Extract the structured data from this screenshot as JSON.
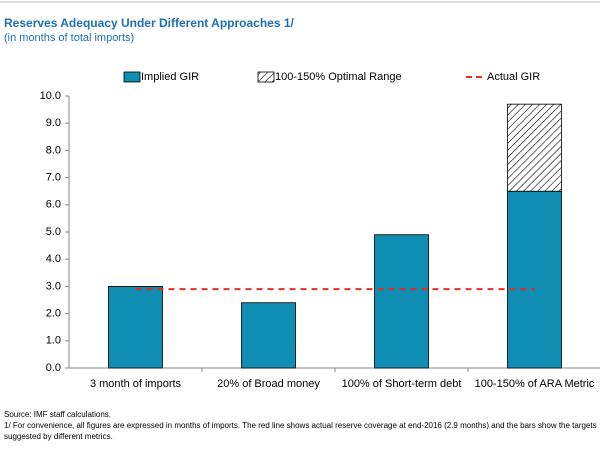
{
  "chart_data": {
    "type": "bar",
    "title": "Reserves Adequacy Under Different Approaches 1/",
    "subtitle": "(in months of total imports)",
    "categories": [
      "3 month of imports",
      "20% of Broad money",
      "100% of Short-term debt",
      "100-150% of ARA Metric"
    ],
    "series": [
      {
        "name": "Implied GIR",
        "color": "#0f8db3",
        "type": "bar",
        "values": [
          3.0,
          2.4,
          4.9,
          6.5
        ]
      },
      {
        "name": "100-150% Optimal Range",
        "color": "#000000",
        "type": "bar",
        "pattern": "hatch",
        "values": [
          null,
          null,
          null,
          3.2
        ]
      },
      {
        "name": "Actual GIR",
        "color": "#e0302a",
        "type": "line",
        "dashed": true,
        "values": [
          2.9,
          2.9,
          2.9,
          2.9
        ]
      }
    ],
    "stacked": true,
    "ylim": [
      0,
      10
    ],
    "yticks": [
      {
        "value": 0,
        "label": "0.0"
      },
      {
        "value": 1,
        "label": "1.0"
      },
      {
        "value": 2,
        "label": "2.0"
      },
      {
        "value": 3,
        "label": "3.0"
      },
      {
        "value": 4,
        "label": "4.0"
      },
      {
        "value": 5,
        "label": "5.0"
      },
      {
        "value": 6,
        "label": "6.0"
      },
      {
        "value": 7,
        "label": "7.0"
      },
      {
        "value": 8,
        "label": "8.0"
      },
      {
        "value": 9,
        "label": "9.0"
      },
      {
        "value": 10,
        "label": "10.0"
      }
    ],
    "legend": "top",
    "notes": [
      "Source: IMF staff calculations.",
      "1/ For convenience, all figures are expressed in months of imports. The red line shows actual reserve coverage at end-2016 (2.9 months) and the bars show the targets suggested by different metrics."
    ]
  }
}
